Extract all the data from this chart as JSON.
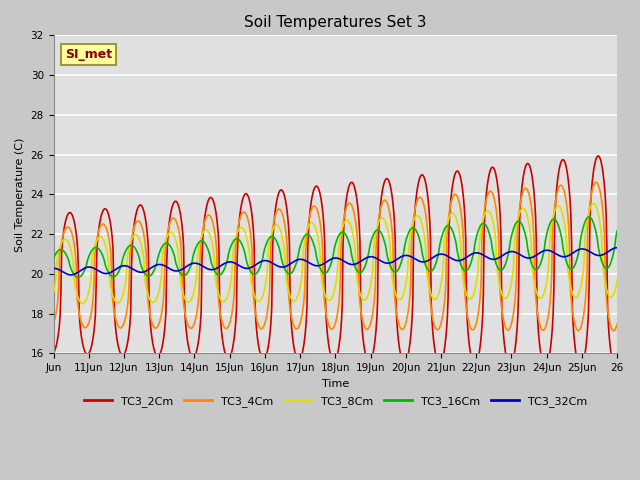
{
  "title": "Soil Temperatures Set 3",
  "xlabel": "Time",
  "ylabel": "Soil Temperature (C)",
  "ylim": [
    16,
    32
  ],
  "series_colors": [
    "#cc0000",
    "#ff8800",
    "#dddd00",
    "#00bb00",
    "#0000cc"
  ],
  "series_names": [
    "TC3_2Cm",
    "TC3_4Cm",
    "TC3_8Cm",
    "TC3_16Cm",
    "TC3_32Cm"
  ],
  "xtick_labels": [
    "Jun",
    "11Jun",
    "12Jun",
    "13Jun",
    "14Jun",
    "15Jun",
    "16Jun",
    "17Jun",
    "18Jun",
    "19Jun",
    "20Jun",
    "21Jun",
    "22Jun",
    "23Jun",
    "24Jun",
    "25Jun",
    "26"
  ],
  "yticks": [
    16,
    18,
    20,
    22,
    24,
    26,
    28,
    30,
    32
  ],
  "annotation_text": "SI_met",
  "annotation_bg": "#ffff99",
  "annotation_border": "#999944",
  "title_fontsize": 11,
  "axis_label_fontsize": 8,
  "tick_fontsize": 7.5
}
